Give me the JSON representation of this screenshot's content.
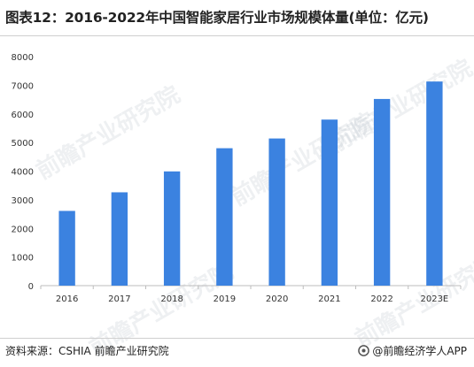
{
  "title": "图表12：2016-2022年中国智能家居行业市场规模体量(单位：亿元)",
  "source": "资料来源：CSHIA 前瞻产业研究院",
  "brand": "@前瞻经济学人APP",
  "watermark": "前瞻产业研究院",
  "colors": {
    "bar": "#3b82e0",
    "axis": "#bdbdbd",
    "tick_text": "#333333"
  },
  "chart_data": {
    "type": "bar",
    "title": "图表12：2016-2022年中国智能家居行业市场规模体量(单位：亿元)",
    "xlabel": "",
    "ylabel": "",
    "categories": [
      "2016",
      "2017",
      "2018",
      "2019",
      "2020",
      "2021",
      "2022",
      "2023E"
    ],
    "values": [
      2610,
      3260,
      3990,
      4800,
      5140,
      5800,
      6520,
      7130
    ],
    "ylim": [
      0,
      8000
    ],
    "yticks": [
      0,
      1000,
      2000,
      3000,
      4000,
      5000,
      6000,
      7000,
      8000
    ],
    "grid": false,
    "legend": "none"
  }
}
